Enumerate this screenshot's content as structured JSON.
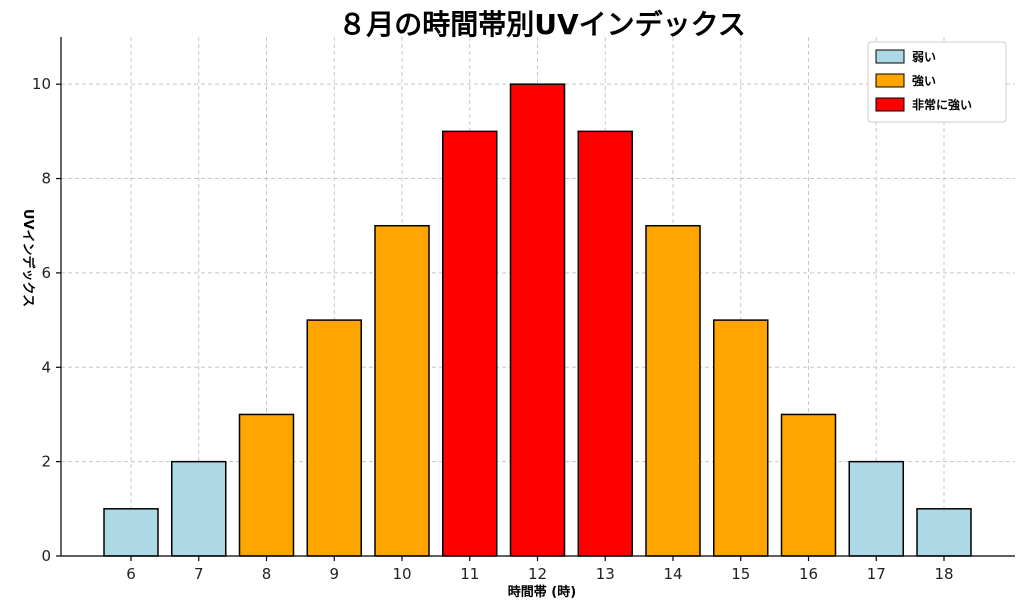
{
  "chart_data": {
    "type": "bar",
    "title": "８月の時間帯別UVインデックス",
    "xlabel": "時間帯 (時)",
    "ylabel": "UVインデックス",
    "categories": [
      "6",
      "7",
      "8",
      "9",
      "10",
      "11",
      "12",
      "13",
      "14",
      "15",
      "16",
      "17",
      "18"
    ],
    "values": [
      1,
      2,
      3,
      5,
      7,
      9,
      10,
      9,
      7,
      5,
      3,
      2,
      1
    ],
    "levels": [
      "weak",
      "weak",
      "strong",
      "strong",
      "strong",
      "very_strong",
      "very_strong",
      "very_strong",
      "strong",
      "strong",
      "strong",
      "weak",
      "weak"
    ],
    "ylim": [
      0,
      11
    ],
    "yticks": [
      0,
      2,
      4,
      6,
      8,
      10
    ],
    "grid": true,
    "legend_position": "top-right",
    "legend": [
      {
        "key": "weak",
        "label": "弱い",
        "color": "#add8e6"
      },
      {
        "key": "strong",
        "label": "強い",
        "color": "#ffa500"
      },
      {
        "key": "very_strong",
        "label": "非常に強い",
        "color": "#ff0000"
      }
    ]
  }
}
